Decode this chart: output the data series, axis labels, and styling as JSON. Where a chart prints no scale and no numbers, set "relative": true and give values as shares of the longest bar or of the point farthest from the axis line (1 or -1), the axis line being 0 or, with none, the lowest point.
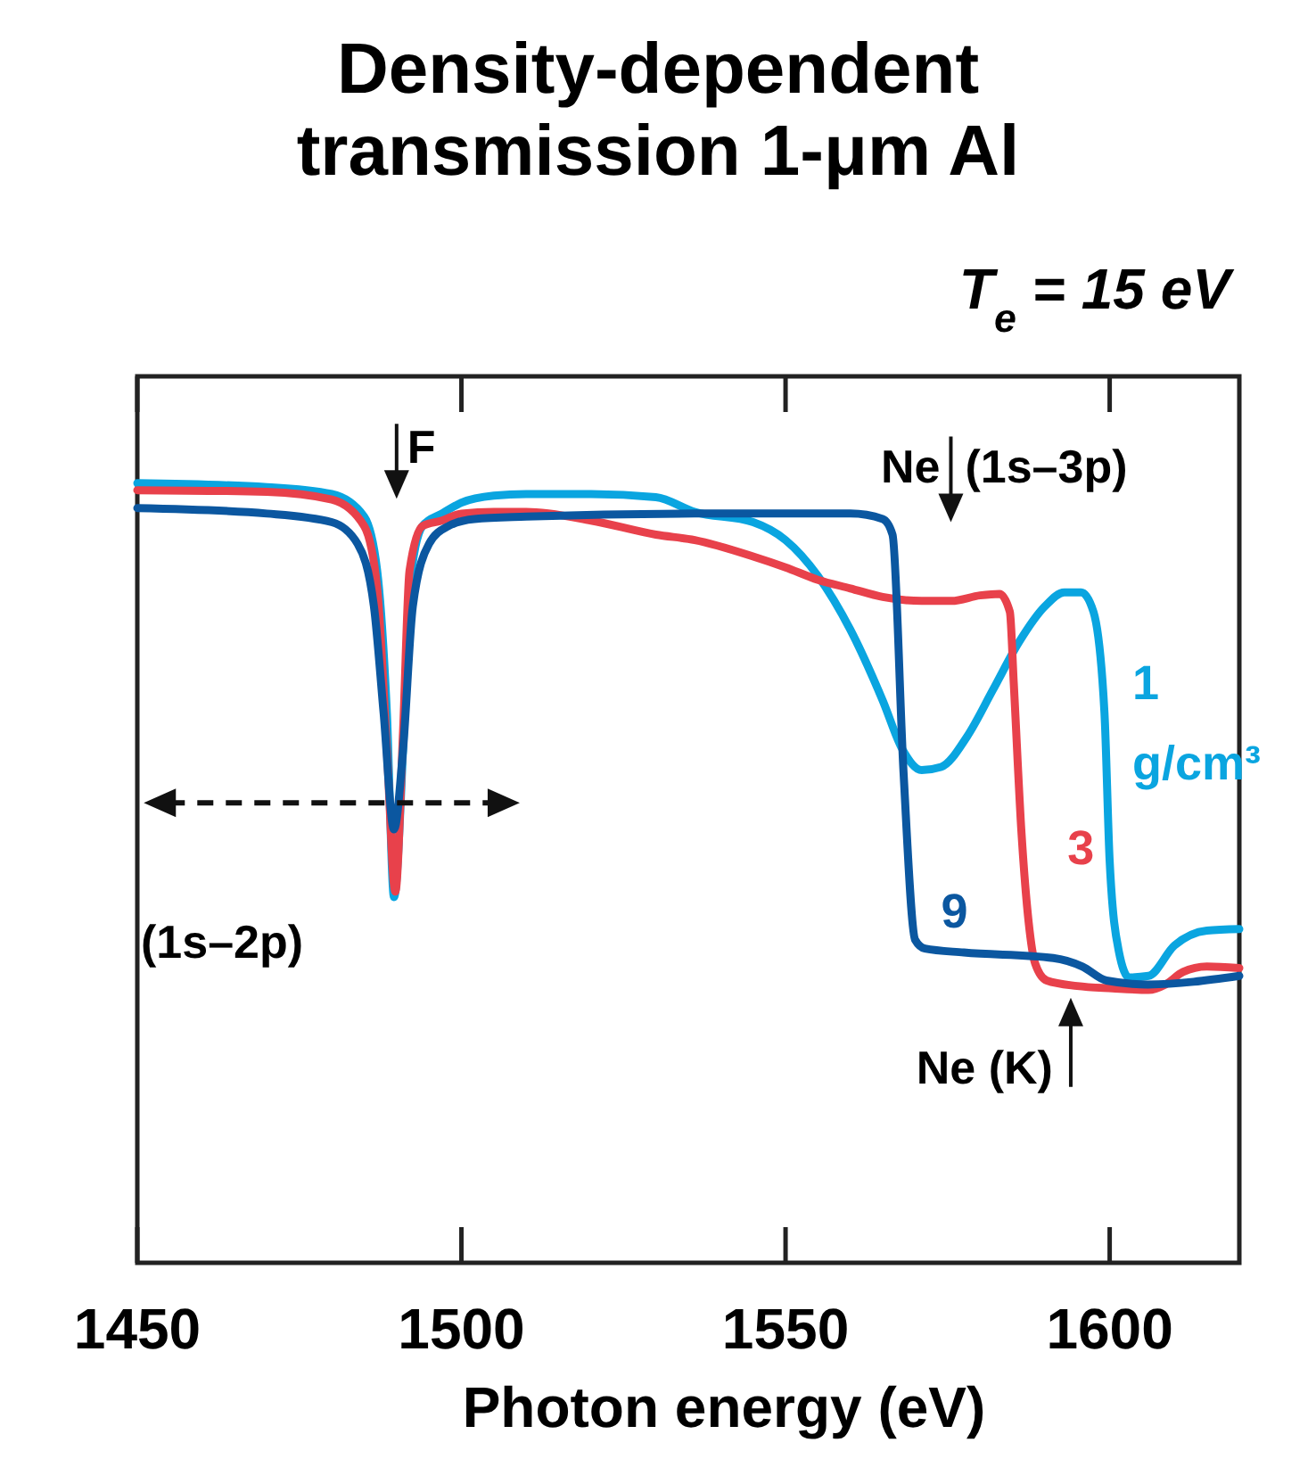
{
  "chart_data": {
    "type": "line",
    "title": "Density-dependent transmission 1-μm Al",
    "subtitle": "T$_{e}$ = 15 eV",
    "xlabel": "Photon energy (eV)",
    "relative": true,
    "xlim": [
      1450,
      1620
    ],
    "xticks": [
      1450,
      1500,
      1550,
      1600
    ],
    "tick_labels": "x",
    "line_style": "solid",
    "annotations": [
      "F",
      "Ne (1s–3p)",
      "(1s–2p)",
      "Ne (K)"
    ],
    "series": [
      {
        "name": "1 g/cm³",
        "color": "#0aa5e0",
        "x": [
          1450,
          1470,
          1480,
          1485,
          1487,
          1488.5,
          1489.6,
          1491,
          1492,
          1494,
          1497,
          1500,
          1505,
          1510,
          1520,
          1530,
          1536,
          1545,
          1550,
          1555,
          1560,
          1565,
          1568,
          1571,
          1574,
          1578,
          1582,
          1586,
          1590,
          1593,
          1595.6,
          1597.5,
          1599.2,
          1600,
          1601.4,
          1603,
          1606,
          1610,
          1615,
          1620
        ],
        "values": [
          1.0,
          0.995,
          0.986,
          0.957,
          0.888,
          0.705,
          0.469,
          0.659,
          0.865,
          0.945,
          0.961,
          0.975,
          0.984,
          0.986,
          0.986,
          0.982,
          0.963,
          0.95,
          0.927,
          0.881,
          0.812,
          0.721,
          0.659,
          0.632,
          0.636,
          0.675,
          0.735,
          0.796,
          0.842,
          0.86,
          0.86,
          0.835,
          0.705,
          0.515,
          0.4,
          0.366,
          0.368,
          0.407,
          0.426,
          0.428
        ]
      },
      {
        "name": "3",
        "color": "#e8414b",
        "x": [
          1450,
          1470,
          1480,
          1485,
          1487,
          1488.5,
          1489.8,
          1491,
          1492,
          1494,
          1497,
          1500,
          1505,
          1510,
          1520,
          1530,
          1536,
          1545,
          1550,
          1555,
          1560,
          1565,
          1571,
          1575.6,
          1580,
          1583,
          1584.6,
          1585.2,
          1586.4,
          1587.5,
          1588.5,
          1590.3,
          1595,
          1600.4,
          1606,
          1608.6,
          1611.3,
          1615,
          1620
        ],
        "values": [
          0.991,
          0.989,
          0.979,
          0.945,
          0.865,
          0.659,
          0.476,
          0.682,
          0.888,
          0.945,
          0.952,
          0.961,
          0.963,
          0.963,
          0.952,
          0.934,
          0.927,
          0.906,
          0.892,
          0.876,
          0.865,
          0.854,
          0.849,
          0.849,
          0.856,
          0.858,
          0.835,
          0.744,
          0.551,
          0.437,
          0.384,
          0.362,
          0.355,
          0.352,
          0.35,
          0.357,
          0.373,
          0.38,
          0.378
        ]
      },
      {
        "name": "9",
        "color": "#0b57a0",
        "x": [
          1450,
          1470,
          1480,
          1484,
          1486.5,
          1488,
          1489.6,
          1491,
          1492.5,
          1495,
          1498,
          1502,
          1510,
          1536,
          1560,
          1565,
          1566.5,
          1568.2,
          1570,
          1571.5,
          1577.5,
          1591.3,
          1595.8,
          1599.5,
          1605.9,
          1620
        ],
        "values": [
          0.968,
          0.961,
          0.95,
          0.922,
          0.842,
          0.705,
          0.556,
          0.659,
          0.842,
          0.922,
          0.945,
          0.954,
          0.957,
          0.961,
          0.961,
          0.954,
          0.934,
          0.629,
          0.414,
          0.403,
          0.398,
          0.391,
          0.38,
          0.362,
          0.357,
          0.368
        ]
      }
    ]
  }
}
